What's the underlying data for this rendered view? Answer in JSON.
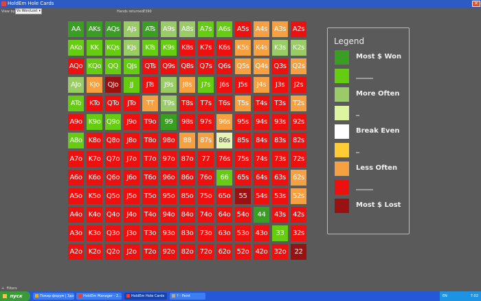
{
  "window": {
    "title": "HoldEm Hole Cards",
    "close_glyph": "✕"
  },
  "toolbar": {
    "view_by_label": "View by:",
    "view_by_value": "Vs Won/Lost",
    "hands_label": "Hands returned:",
    "hands_value": "7390"
  },
  "grid": {
    "rows": [
      [
        "AA",
        "AKs",
        "AQs",
        "AJs",
        "ATs",
        "A9s",
        "A8s",
        "A7s",
        "A6s",
        "A5s",
        "A4s",
        "A3s",
        "A2s"
      ],
      [
        "AKo",
        "KK",
        "KQs",
        "KJs",
        "KTs",
        "K9s",
        "K8s",
        "K7s",
        "K6s",
        "K5s",
        "K4s",
        "K3s",
        "K2s"
      ],
      [
        "AQo",
        "KQo",
        "QQ",
        "QJs",
        "QTs",
        "Q9s",
        "Q8s",
        "Q7s",
        "Q6s",
        "Q5s",
        "Q4s",
        "Q3s",
        "Q2s"
      ],
      [
        "AJo",
        "KJo",
        "QJo",
        "JJ",
        "JTs",
        "J9s",
        "J8s",
        "J7s",
        "J6s",
        "J5s",
        "J4s",
        "J3s",
        "J2s"
      ],
      [
        "ATo",
        "KTo",
        "QTo",
        "JTo",
        "TT",
        "T9s",
        "T8s",
        "T7s",
        "T6s",
        "T5s",
        "T4s",
        "T3s",
        "T2s"
      ],
      [
        "A9o",
        "K9o",
        "Q9o",
        "J9o",
        "T9o",
        "99",
        "98s",
        "97s",
        "96s",
        "95s",
        "94s",
        "93s",
        "92s"
      ],
      [
        "A8o",
        "K8o",
        "Q8o",
        "J8o",
        "T8o",
        "98o",
        "88",
        "87s",
        "86s",
        "85s",
        "84s",
        "83s",
        "82s"
      ],
      [
        "A7o",
        "K7o",
        "Q7o",
        "J7o",
        "T7o",
        "97o",
        "87o",
        "77",
        "76s",
        "75s",
        "74s",
        "73s",
        "72s"
      ],
      [
        "A6o",
        "K6o",
        "Q6o",
        "J6o",
        "T6o",
        "96o",
        "86o",
        "76o",
        "66",
        "65s",
        "64s",
        "63s",
        "62s"
      ],
      [
        "A5o",
        "K5o",
        "Q5o",
        "J5o",
        "T5o",
        "95o",
        "85o",
        "75o",
        "65o",
        "55",
        "54s",
        "53s",
        "52s"
      ],
      [
        "A4o",
        "K4o",
        "Q4o",
        "J4o",
        "T4o",
        "94o",
        "84o",
        "74o",
        "64o",
        "54o",
        "44",
        "43s",
        "42s"
      ],
      [
        "A3o",
        "K3o",
        "Q3o",
        "J3o",
        "T3o",
        "93o",
        "83o",
        "73o",
        "63o",
        "53o",
        "43o",
        "33",
        "32s"
      ],
      [
        "A2o",
        "K2o",
        "Q2o",
        "J2o",
        "T2o",
        "92o",
        "82o",
        "72o",
        "62o",
        "52o",
        "42o",
        "32o",
        "22"
      ]
    ],
    "levels": [
      [
        1,
        1,
        1,
        3,
        1,
        3,
        3,
        2,
        2,
        5,
        4,
        4,
        5
      ],
      [
        2,
        2,
        2,
        3,
        2,
        2,
        5,
        5,
        5,
        4,
        4,
        3,
        3
      ],
      [
        5,
        2,
        2,
        2,
        5,
        5,
        5,
        5,
        5,
        4,
        4,
        5,
        4
      ],
      [
        3,
        4,
        6,
        2,
        5,
        3,
        4,
        2,
        5,
        5,
        4,
        5,
        5
      ],
      [
        2,
        5,
        5,
        5,
        4,
        3,
        5,
        5,
        5,
        4,
        5,
        5,
        4
      ],
      [
        5,
        2,
        2,
        5,
        5,
        1,
        5,
        5,
        4,
        5,
        5,
        5,
        5
      ],
      [
        2,
        5,
        5,
        5,
        5,
        5,
        4,
        4,
        7,
        5,
        5,
        5,
        5
      ],
      [
        5,
        5,
        5,
        5,
        5,
        5,
        5,
        5,
        5,
        5,
        5,
        5,
        5
      ],
      [
        5,
        5,
        5,
        5,
        5,
        5,
        5,
        5,
        2,
        5,
        5,
        5,
        4
      ],
      [
        5,
        5,
        5,
        5,
        5,
        5,
        5,
        5,
        5,
        6,
        5,
        5,
        4
      ],
      [
        5,
        5,
        5,
        5,
        5,
        5,
        5,
        5,
        5,
        5,
        1,
        5,
        5
      ],
      [
        5,
        5,
        5,
        5,
        5,
        5,
        5,
        5,
        5,
        5,
        5,
        2,
        5
      ],
      [
        5,
        5,
        5,
        5,
        5,
        5,
        5,
        5,
        5,
        5,
        5,
        5,
        6
      ]
    ]
  },
  "palette": {
    "1": "#3a9e22",
    "2": "#66cc11",
    "3": "#99cc66",
    "4": "#f7a041",
    "5": "#ee0f0f",
    "6": "#991111",
    "7": "#e6f5b5"
  },
  "legend": {
    "title": "Legend",
    "items": [
      {
        "label": "Most $ Won",
        "color": "#3a9e22"
      },
      {
        "label": "_____",
        "color": "#66cc11"
      },
      {
        "label": "More Often",
        "color": "#99cc66"
      },
      {
        "label": "_",
        "color": "#ddf5a0"
      },
      {
        "label": "Break Even",
        "color": "#ffffff"
      },
      {
        "label": "_",
        "color": "#ffcc33"
      },
      {
        "label": "Less Often",
        "color": "#f7a041"
      },
      {
        "label": "_____",
        "color": "#ee0f0f"
      },
      {
        "label": "Most $ Lost",
        "color": "#991111"
      }
    ]
  },
  "filters": {
    "label": "Filters",
    "toggle": "+"
  },
  "taskbar": {
    "start_label": "пуск",
    "tasks": [
      {
        "label": "Покер-форум | Здоро...",
        "icon_color": "#f6a623"
      },
      {
        "label": "HoldEm Manager - 2...",
        "icon_color": "#d44"
      },
      {
        "label": "HoldEm Hole Cards",
        "icon_color": "#d44"
      },
      {
        "label": "? - Paint",
        "icon_color": "#aaa"
      }
    ],
    "lang": "EN",
    "clock": "7:02"
  }
}
